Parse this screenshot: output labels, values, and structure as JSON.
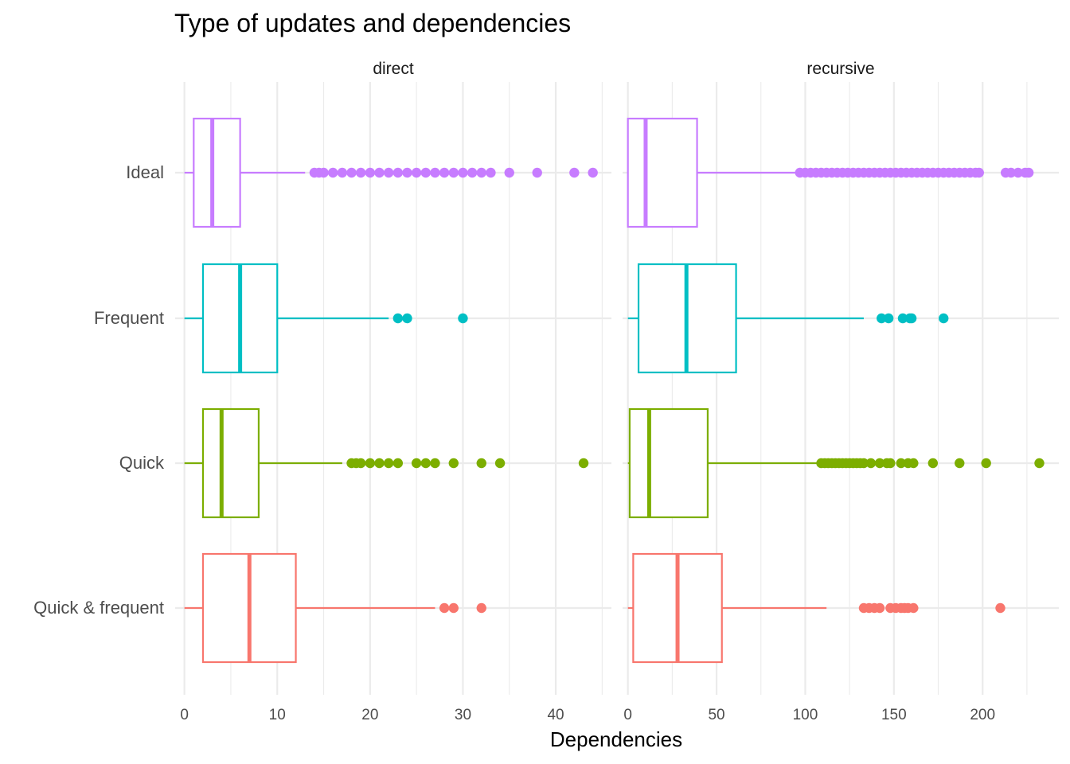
{
  "chart_data": {
    "type": "boxplot",
    "title": "Type of updates and dependencies",
    "xlabel": "Dependencies",
    "ylabel": "",
    "categories": [
      "Ideal",
      "Frequent",
      "Quick",
      "Quick & frequent"
    ],
    "colors": {
      "Ideal": "#C77CFF",
      "Frequent": "#00BFC4",
      "Quick": "#7CAE00",
      "Quick & frequent": "#F8766D"
    },
    "legend": "none",
    "grid": true,
    "facets": [
      {
        "name": "direct",
        "xlim": [
          -1,
          46
        ],
        "x_ticks": [
          0,
          10,
          20,
          30,
          40
        ],
        "boxes": [
          {
            "category": "Ideal",
            "min": 0,
            "q1": 1,
            "median": 3,
            "q3": 6,
            "max": 13,
            "outliers": [
              14,
              14.5,
              15,
              16,
              17,
              18,
              19,
              20,
              21,
              22,
              23,
              24,
              25,
              26,
              27,
              28,
              29,
              30,
              31,
              32,
              33,
              35,
              38,
              42,
              44
            ]
          },
          {
            "category": "Frequent",
            "min": 0,
            "q1": 2,
            "median": 6,
            "q3": 10,
            "max": 22,
            "outliers": [
              23,
              24,
              30
            ]
          },
          {
            "category": "Quick",
            "min": 0,
            "q1": 2,
            "median": 4,
            "q3": 8,
            "max": 17,
            "outliers": [
              18,
              18.5,
              19,
              20,
              21,
              22,
              23,
              25,
              26,
              27,
              29,
              32,
              34,
              43
            ]
          },
          {
            "category": "Quick & frequent",
            "min": 0,
            "q1": 2,
            "median": 7,
            "q3": 12,
            "max": 27,
            "outliers": [
              28,
              29,
              32
            ]
          }
        ]
      },
      {
        "name": "recursive",
        "xlim": [
          -3,
          243
        ],
        "x_ticks": [
          0,
          50,
          100,
          150,
          200
        ],
        "boxes": [
          {
            "category": "Ideal",
            "min": 0,
            "q1": 0,
            "median": 10,
            "q3": 39,
            "max": 96,
            "outliers": [
              97,
              100,
              103,
              106,
              109,
              112,
              115,
              118,
              121,
              124,
              127,
              130,
              133,
              136,
              139,
              142,
              145,
              148,
              151,
              154,
              157,
              160,
              163,
              166,
              169,
              172,
              175,
              178,
              181,
              184,
              187,
              190,
              193,
              196,
              198,
              213,
              216,
              220,
              224,
              226
            ]
          },
          {
            "category": "Frequent",
            "min": 0,
            "q1": 6,
            "median": 33,
            "q3": 61,
            "max": 133,
            "outliers": [
              143,
              147,
              155,
              159,
              160,
              178
            ]
          },
          {
            "category": "Quick",
            "min": 0,
            "q1": 1,
            "median": 12,
            "q3": 45,
            "max": 108,
            "outliers": [
              109,
              111,
              113,
              115,
              117,
              119,
              121,
              123,
              125,
              127,
              129,
              131,
              133,
              137,
              142,
              146,
              148,
              154,
              158,
              161,
              172,
              187,
              202,
              232
            ]
          },
          {
            "category": "Quick & frequent",
            "min": 0,
            "q1": 3,
            "median": 28,
            "q3": 53,
            "max": 112,
            "outliers": [
              133,
              136,
              139,
              142,
              148,
              151,
              154,
              156,
              158,
              161,
              210
            ]
          }
        ]
      }
    ]
  }
}
